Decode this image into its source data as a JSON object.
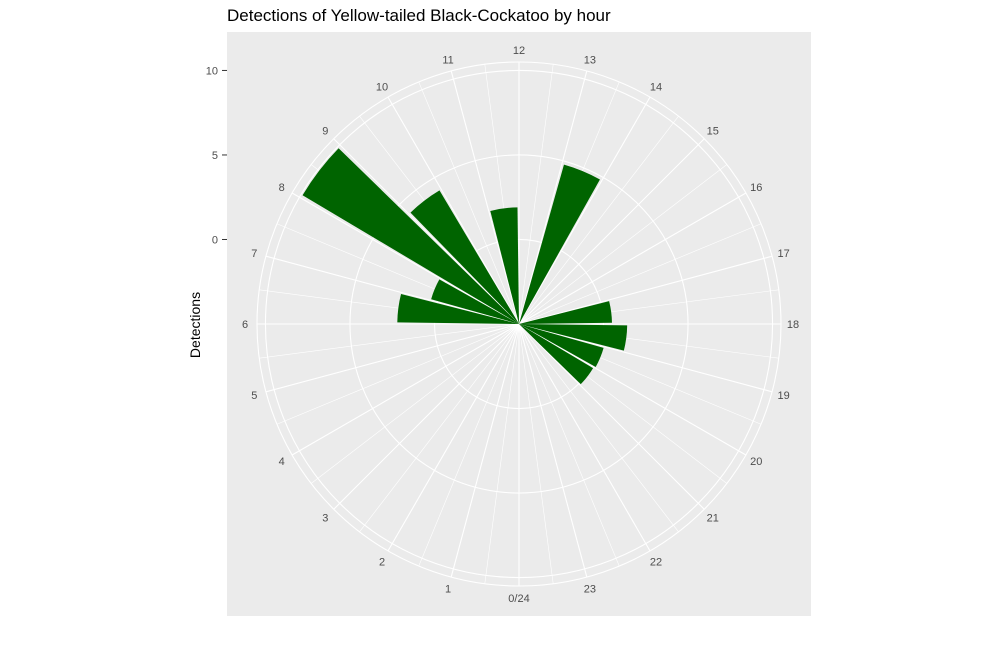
{
  "chart_data": {
    "type": "bar",
    "coord": "polar",
    "title": "Detections of Yellow-tailed Black-Cockatoo by hour",
    "xlabel": "",
    "ylabel": "Detections",
    "theta_labels": [
      "0/24",
      "1",
      "2",
      "3",
      "4",
      "5",
      "6",
      "7",
      "8",
      "9",
      "10",
      "11",
      "12",
      "13",
      "14",
      "15",
      "16",
      "17",
      "18",
      "19",
      "20",
      "21",
      "22",
      "23"
    ],
    "y_ticks": [
      {
        "value": 0,
        "label": "0"
      },
      {
        "value": 5,
        "label": "5"
      },
      {
        "value": 10,
        "label": "10"
      }
    ],
    "ylim": [
      -5,
      10.5
    ],
    "bar_color": "#006400",
    "panel_color": "#ebebeb",
    "grid": true,
    "bars": [
      {
        "hour": 6,
        "value": 2.2
      },
      {
        "hour": 7,
        "value": 0.4
      },
      {
        "hour": 8,
        "value": 9.9
      },
      {
        "hour": 9,
        "value": 4.2
      },
      {
        "hour": 11,
        "value": 1.9
      },
      {
        "hour": 13,
        "value": 4.8
      },
      {
        "hour": 17,
        "value": 0.5
      },
      {
        "hour": 18,
        "value": 1.4
      },
      {
        "hour": 19,
        "value": 0.2
      },
      {
        "hour": 20,
        "value": 0.1
      }
    ]
  }
}
